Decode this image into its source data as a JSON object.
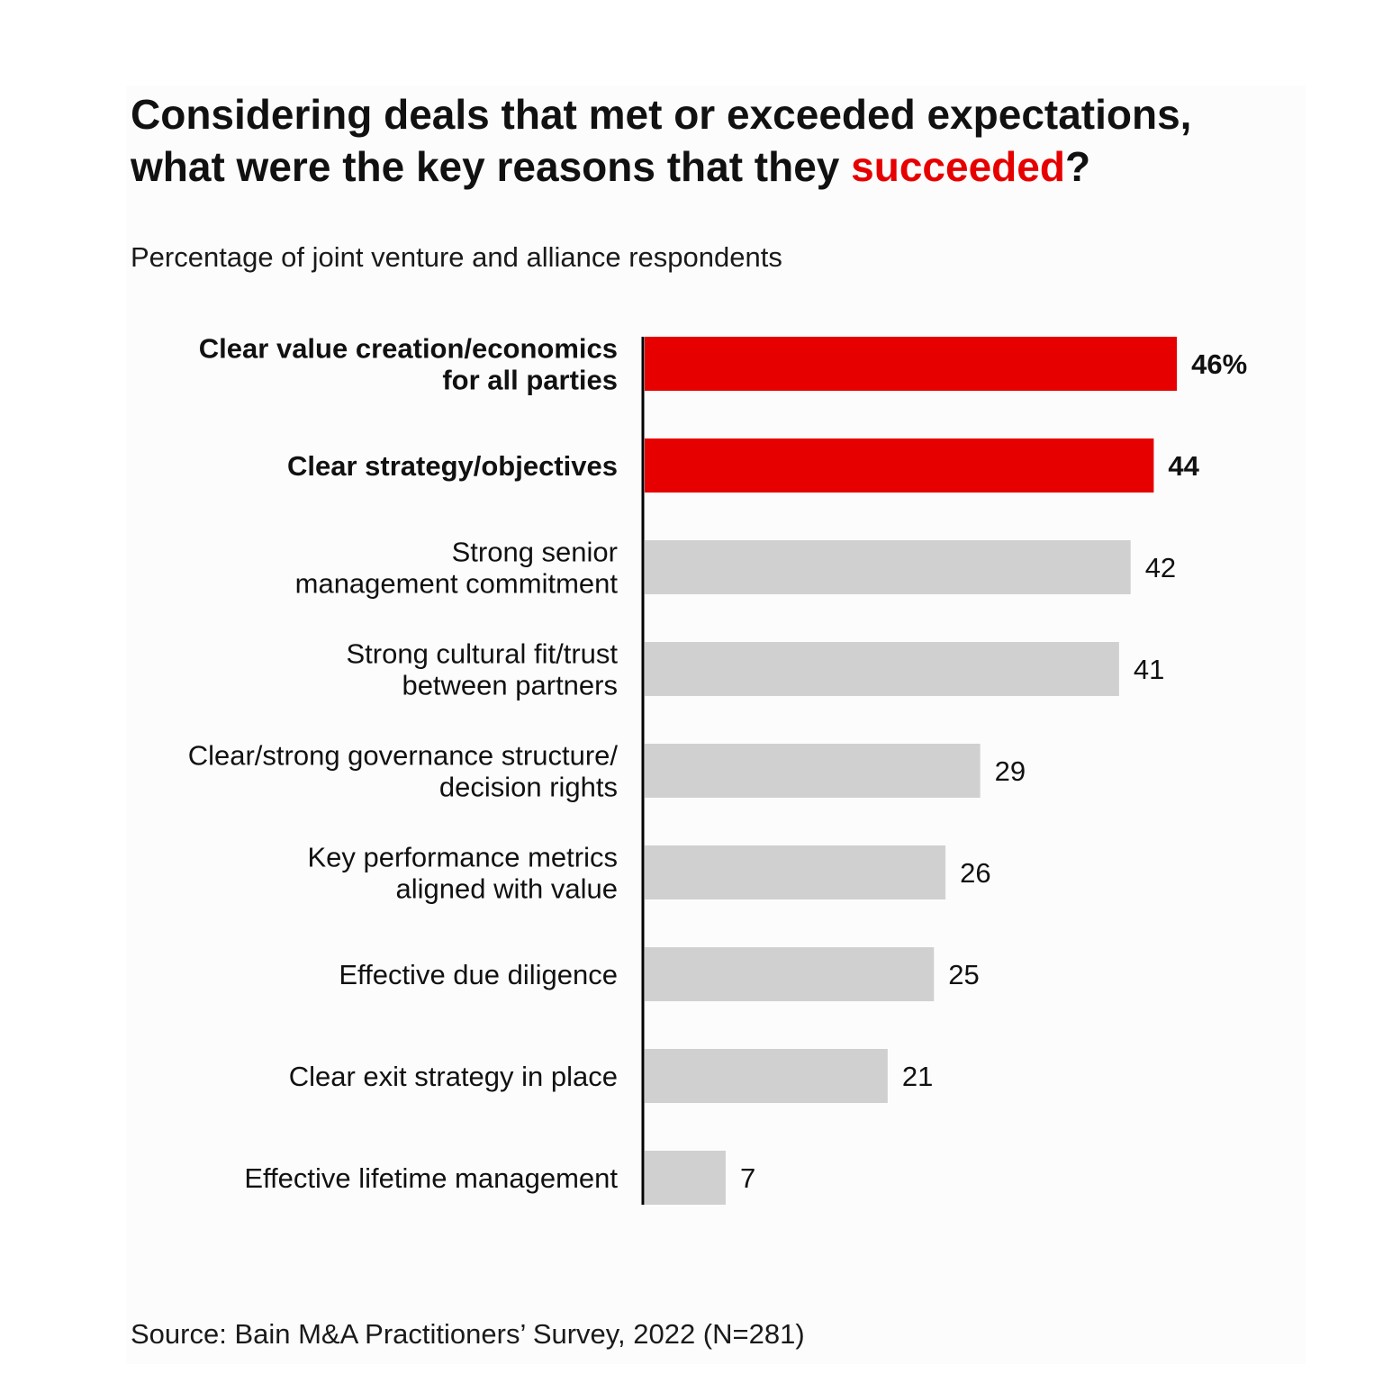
{
  "title": {
    "line1": "Considering deals that met or exceeded expectations,",
    "line2_prefix": "what were the key reasons that they ",
    "line2_highlight": "succeeded",
    "line2_suffix": "?"
  },
  "subtitle": "Percentage of joint venture and alliance respondents",
  "source": "Source: Bain M&A Practitioners’ Survey, 2022 (N=281)",
  "colors": {
    "highlight": "#e60000",
    "bar": "#d0d0d0",
    "axis": "#000000",
    "text": "#111111"
  },
  "chart_data": {
    "type": "bar",
    "orientation": "horizontal",
    "title": "Considering deals that met or exceeded expectations, what were the key reasons that they succeeded?",
    "ylabel": "",
    "xlabel": "Percentage of joint venture and alliance respondents",
    "xlim": [
      0,
      50
    ],
    "grid": false,
    "categories": [
      [
        "Clear value creation/economics",
        "for all parties"
      ],
      [
        "Clear strategy/objectives"
      ],
      [
        "Strong senior",
        "management commitment"
      ],
      [
        "Strong cultural fit/trust",
        "between partners"
      ],
      [
        "Clear/strong governance structure/",
        "decision rights"
      ],
      [
        "Key performance metrics",
        "aligned with value"
      ],
      [
        "Effective due diligence"
      ],
      [
        "Clear exit strategy in place"
      ],
      [
        "Effective lifetime management"
      ]
    ],
    "values": [
      46,
      44,
      42,
      41,
      29,
      26,
      25,
      21,
      7
    ],
    "value_labels": [
      "46%",
      "44",
      "42",
      "41",
      "29",
      "26",
      "25",
      "21",
      "7"
    ],
    "highlighted": [
      true,
      true,
      false,
      false,
      false,
      false,
      false,
      false,
      false
    ]
  }
}
